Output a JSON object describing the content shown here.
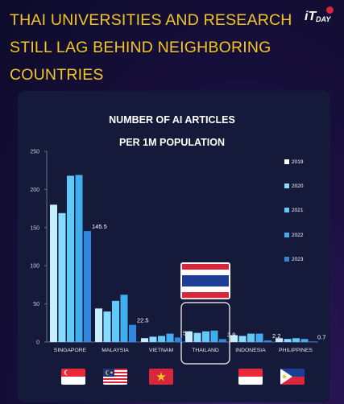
{
  "headline": {
    "line1": "THAI UNIVERSITIES AND RESEARCH",
    "line2": "STILL LAG BEHIND NEIGHBORING",
    "line3": "COUNTRIES"
  },
  "brand": {
    "logo_text": "DAY"
  },
  "chart_data": {
    "type": "bar",
    "title": "NUMBER OF AI ARTICLES PER 1M POPULATION",
    "title_line1": "NUMBER OF AI ARTICLES",
    "title_line2": "PER 1M POPULATION",
    "categories": [
      "SINGAPORE",
      "MALAYSIA",
      "VIETNAM",
      "THAILAND",
      "INDONESIA",
      "PHILIPPINES"
    ],
    "series": [
      {
        "name": "2019",
        "values": [
          180,
          44,
          5,
          14,
          9,
          5
        ]
      },
      {
        "name": "2020",
        "values": [
          169,
          40,
          7,
          12,
          8,
          4
        ]
      },
      {
        "name": "2021",
        "values": [
          218,
          54,
          8,
          14,
          11,
          5
        ]
      },
      {
        "name": "2022",
        "values": [
          219,
          62,
          11,
          15,
          11,
          4
        ]
      },
      {
        "name": "2023",
        "values": [
          145.5,
          22.5,
          5.9,
          3.9,
          2.2,
          0.7
        ]
      }
    ],
    "data_labels": [
      "145.5",
      "22.5",
      "5.9",
      "3.9",
      "2.2",
      "0.7"
    ],
    "ylim": [
      0,
      250
    ],
    "yticks": [
      0,
      50,
      100,
      150,
      200,
      250
    ],
    "highlight": "THAILAND",
    "legend_position": "right",
    "colors": [
      "#c3efff",
      "#86dcff",
      "#5fc9f7",
      "#3eaeee",
      "#2e87dc"
    ]
  },
  "flags": [
    "singapore-flag",
    "malaysia-flag",
    "vietnam-flag",
    "thailand-flag",
    "indonesia-flag",
    "philippines-flag"
  ]
}
